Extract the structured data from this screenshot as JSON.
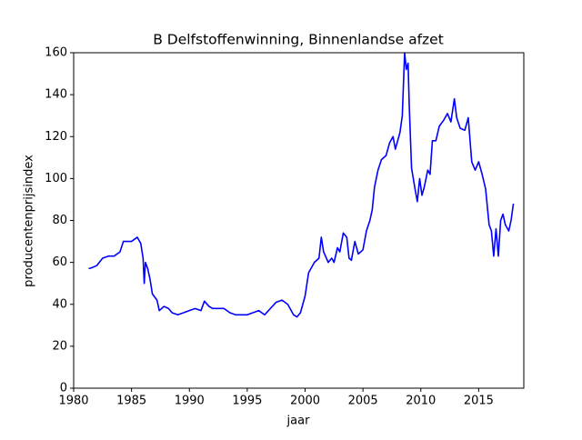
{
  "chart_data": {
    "type": "line",
    "title": "B Delfstoffenwinning, Binnenlandse afzet",
    "xlabel": "jaar",
    "ylabel": "producentenprijsindex",
    "color": "#0000ff",
    "x": [
      1981.3,
      1981.6,
      1982,
      1982.5,
      1983,
      1983.5,
      1984,
      1984.3,
      1985,
      1985.5,
      1985.8,
      1986.0,
      1986.1,
      1986.2,
      1986.4,
      1986.6,
      1986.8,
      1987.2,
      1987.4,
      1987.8,
      1988.2,
      1988.5,
      1989,
      1989.5,
      1990,
      1990.5,
      1991,
      1991.3,
      1991.7,
      1992,
      1993,
      1993.5,
      1994,
      1995,
      1996,
      1996.5,
      1997,
      1997.5,
      1998,
      1998.5,
      1999,
      1999.3,
      1999.6,
      2000,
      2000.3,
      2000.8,
      2001.2,
      2001.4,
      2001.6,
      2002,
      2002.3,
      2002.5,
      2002.8,
      2003,
      2003.3,
      2003.6,
      2003.8,
      2004,
      2004.3,
      2004.6,
      2005,
      2005.3,
      2005.6,
      2005.8,
      2006,
      2006.3,
      2006.6,
      2007,
      2007.3,
      2007.6,
      2007.8,
      2008,
      2008.2,
      2008.4,
      2008.6,
      2008.75,
      2008.9,
      2009.0,
      2009.2,
      2009.5,
      2009.7,
      2009.9,
      2010.1,
      2010.3,
      2010.6,
      2010.8,
      2011,
      2011.3,
      2011.6,
      2012,
      2012.3,
      2012.6,
      2012.9,
      2013.1,
      2013.4,
      2013.8,
      2014.1,
      2014.4,
      2014.7,
      2015,
      2015.3,
      2015.6,
      2015.9,
      2016.1,
      2016.3,
      2016.5,
      2016.7,
      2016.9,
      2017.1,
      2017.3,
      2017.6,
      2017.8,
      2018.0
    ],
    "values": [
      57,
      57.5,
      58.5,
      62,
      63,
      63,
      65,
      70,
      70,
      72,
      69,
      62,
      50,
      60,
      57,
      52,
      45,
      42,
      37,
      39,
      38,
      36,
      35,
      36,
      37,
      38,
      37,
      41.5,
      39,
      38,
      38,
      36,
      35,
      35,
      37,
      35,
      38,
      41,
      42,
      40,
      35,
      34,
      36,
      44,
      55,
      60,
      62,
      72,
      65,
      60,
      62,
      60,
      67,
      65,
      74,
      72,
      62,
      61,
      70,
      64,
      66,
      75,
      80,
      85,
      96,
      104,
      109,
      111,
      117,
      120,
      114,
      118,
      122,
      130,
      160,
      152,
      155,
      135,
      105,
      95,
      89,
      100,
      92,
      96,
      104,
      102,
      118,
      118,
      125,
      128,
      131,
      127,
      138,
      129,
      124,
      123,
      129,
      108,
      104,
      108,
      102,
      95,
      78,
      75,
      63,
      76,
      63,
      80,
      83,
      78,
      75,
      80,
      88
    ],
    "xlim": [
      1980,
      2018.9
    ],
    "ylim": [
      0,
      160
    ],
    "xticks": [
      1980,
      1985,
      1990,
      1995,
      2000,
      2005,
      2010,
      2015
    ],
    "yticks": [
      0,
      20,
      40,
      60,
      80,
      100,
      120,
      140,
      160
    ],
    "grid": false
  }
}
